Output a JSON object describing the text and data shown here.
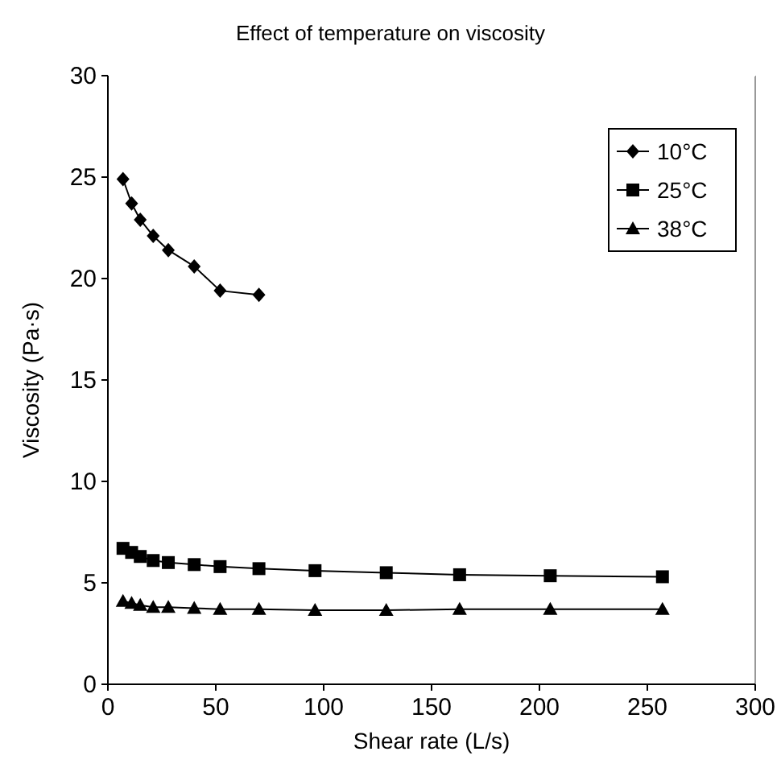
{
  "chart_data": {
    "type": "line",
    "title": "Effect of temperature on viscosity",
    "xlabel": "Shear rate (L/s)",
    "ylabel": "Viscosity (Pa·s)",
    "xlim": [
      0,
      300
    ],
    "xticks": [
      0,
      50,
      100,
      150,
      200,
      250,
      300
    ],
    "ylim": [
      0,
      30
    ],
    "yticks": [
      0,
      5,
      10,
      15,
      20,
      25,
      30
    ],
    "grid": false,
    "legend": "top right",
    "series": [
      {
        "name": "10°C",
        "color": "#000000",
        "marker": "diamond",
        "x": [
          7,
          11,
          15,
          21,
          28,
          40,
          52,
          70
        ],
        "values": [
          24.9,
          23.7,
          22.9,
          22.1,
          21.4,
          20.6,
          19.4,
          19.2
        ]
      },
      {
        "name": "25°C",
        "color": "#000000",
        "marker": "square",
        "x": [
          7,
          11,
          15,
          21,
          28,
          40,
          52,
          70,
          96,
          129,
          163,
          205,
          257
        ],
        "values": [
          6.7,
          6.5,
          6.3,
          6.1,
          6.0,
          5.9,
          5.8,
          5.7,
          5.6,
          5.5,
          5.4,
          5.35,
          5.3
        ]
      },
      {
        "name": "38°C",
        "color": "#000000",
        "marker": "triangle",
        "x": [
          7,
          11,
          15,
          21,
          28,
          40,
          52,
          70,
          96,
          129,
          163,
          205,
          257
        ],
        "values": [
          4.1,
          4.0,
          3.9,
          3.8,
          3.8,
          3.75,
          3.7,
          3.7,
          3.65,
          3.65,
          3.7,
          3.7,
          3.7
        ]
      }
    ]
  }
}
